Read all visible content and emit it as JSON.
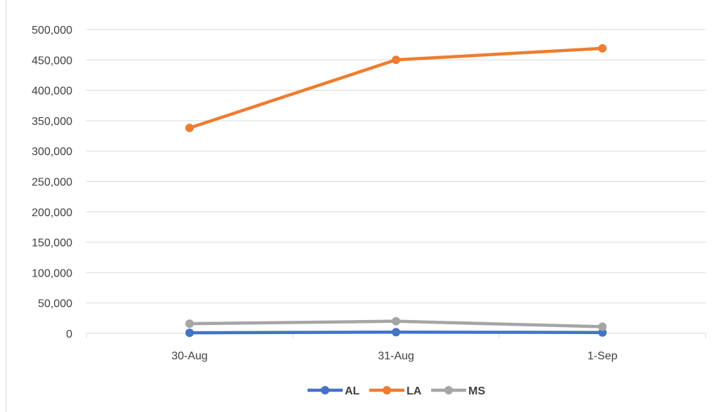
{
  "chart_data": {
    "type": "line",
    "title": "",
    "xlabel": "",
    "ylabel": "",
    "categories": [
      "30-Aug",
      "31-Aug",
      "1-Sep"
    ],
    "y_ticks": [
      "0",
      "50,000",
      "100,000",
      "150,000",
      "200,000",
      "250,000",
      "300,000",
      "350,000",
      "400,000",
      "450,000",
      "500,000"
    ],
    "ylim": [
      0,
      500000
    ],
    "grid": true,
    "legend_position": "bottom",
    "series": [
      {
        "name": "AL",
        "color": "#4472c4",
        "values": [
          1000,
          2000,
          1500
        ]
      },
      {
        "name": "LA",
        "color": "#ed7d31",
        "values": [
          338000,
          450000,
          469000
        ]
      },
      {
        "name": "MS",
        "color": "#a5a5a5",
        "values": [
          16000,
          20000,
          11000
        ]
      }
    ]
  }
}
